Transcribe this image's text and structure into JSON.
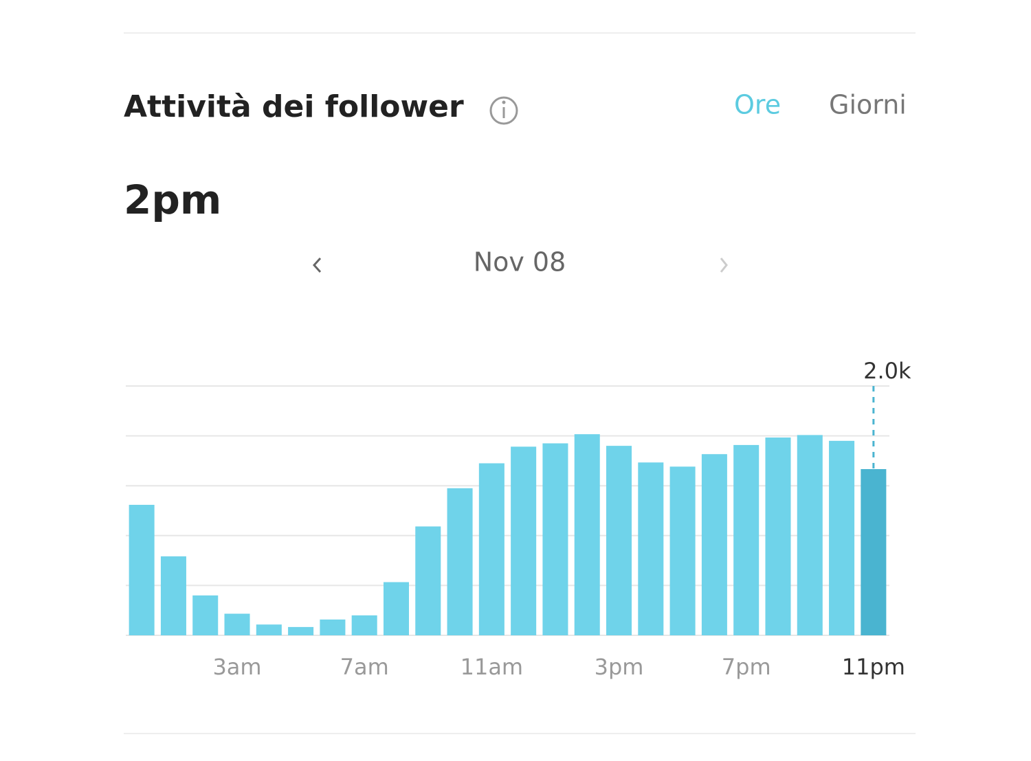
{
  "header": {
    "title": "Attività dei follower",
    "tabs": [
      "Ore",
      "Giorni"
    ]
  },
  "selected": "2pm",
  "date": "Nov 08",
  "chart_data": {
    "type": "bar",
    "categories": [
      null,
      null,
      null,
      "3am",
      null,
      null,
      null,
      "7am",
      null,
      null,
      null,
      "11am",
      null,
      null,
      null,
      "3pm",
      null,
      null,
      null,
      "7pm",
      null,
      null,
      null,
      "11pm"
    ],
    "values": [
      1570,
      950,
      480,
      260,
      130,
      100,
      190,
      240,
      640,
      1310,
      1770,
      2070,
      2270,
      2310,
      2420,
      2280,
      2080,
      2030,
      2180,
      2290,
      2380,
      2410,
      2340,
      2000
    ],
    "value_labels": [
      null,
      null,
      null,
      null,
      null,
      null,
      null,
      null,
      null,
      null,
      null,
      null,
      null,
      null,
      null,
      null,
      null,
      null,
      null,
      null,
      null,
      null,
      null,
      "2.0k"
    ],
    "color": "#6fd3ea",
    "highlight_color": "#4ab4d0",
    "ylim": [
      0,
      3000
    ],
    "yticks": [
      0,
      600,
      1200,
      1800,
      2400,
      3000
    ],
    "grid": true
  }
}
